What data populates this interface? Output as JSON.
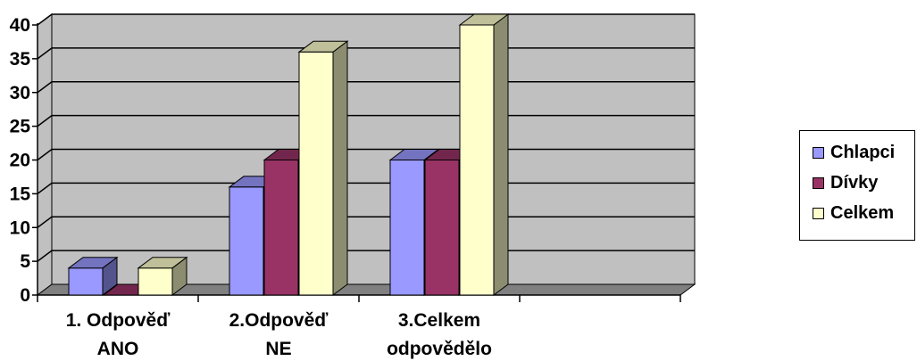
{
  "chart_data": {
    "type": "bar",
    "categories": [
      [
        "1. Odpověď",
        "ANO"
      ],
      [
        "2.Odpověď",
        "NE"
      ],
      [
        "3.Celkem",
        "odpovědělo"
      ],
      [
        ""
      ]
    ],
    "series": [
      {
        "name": "Chlapci",
        "values": [
          4,
          16,
          20,
          null
        ],
        "color": "#9999ff"
      },
      {
        "name": "Dívky",
        "values": [
          0,
          20,
          20,
          null
        ],
        "color": "#993366"
      },
      {
        "name": "Celkem",
        "values": [
          4,
          36,
          40,
          null
        ],
        "color": "#ffffcc"
      }
    ],
    "yticks": [
      "0",
      "5",
      "10",
      "15",
      "20",
      "25",
      "30",
      "35",
      "40"
    ],
    "ylim": [
      0,
      40
    ],
    "grid": true,
    "style": "3d-clustered-column",
    "wall_color": "#c0c0c0",
    "floor_color": "#808080",
    "legend_position": "right"
  }
}
